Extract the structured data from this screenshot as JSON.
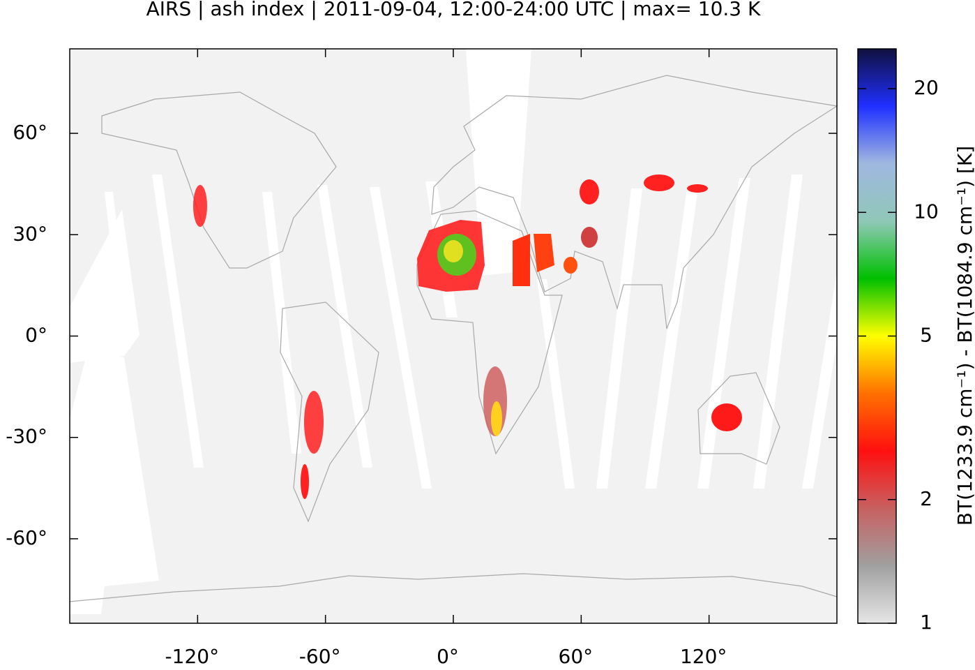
{
  "chart_data": {
    "type": "map",
    "title": "AIRS | ash index | 2011-09-04, 12:00-24:00 UTC | max= 10.3 K",
    "xlim": [
      -180,
      180
    ],
    "ylim": [
      -85,
      85
    ],
    "xticks": [
      {
        "value": -120,
        "label": "-120°"
      },
      {
        "value": -60,
        "label": "-60°"
      },
      {
        "value": 0,
        "label": "0°"
      },
      {
        "value": 60,
        "label": "60°"
      },
      {
        "value": 120,
        "label": "120°"
      }
    ],
    "yticks": [
      {
        "value": -60,
        "label": "-60°"
      },
      {
        "value": -30,
        "label": "-30°"
      },
      {
        "value": 0,
        "label": "0°"
      },
      {
        "value": 30,
        "label": "30°"
      },
      {
        "value": 60,
        "label": "60°"
      }
    ],
    "colorbar": {
      "label": "BT(1233.9 cm⁻¹) - BT(1084.9 cm⁻¹) [K]",
      "log": true,
      "lim": [
        1,
        25
      ],
      "ticks": [
        1,
        2,
        5,
        10,
        20
      ],
      "colormap": [
        "#e6e6e6",
        "#a0a0a0",
        "#c86060",
        "#ff1010",
        "#ff7000",
        "#ffff00",
        "#00c000",
        "#90c8b8",
        "#a0b8e0",
        "#2030ff",
        "#101040"
      ]
    }
  }
}
